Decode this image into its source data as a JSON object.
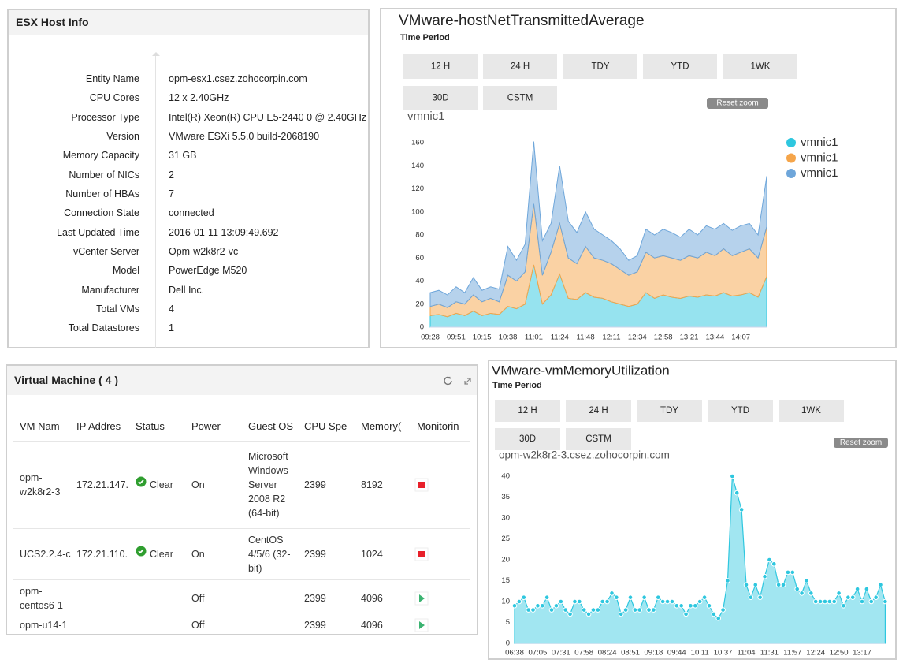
{
  "esx_panel": {
    "title": "ESX Host Info",
    "rows": [
      {
        "label": "Entity Name",
        "value": "opm-esx1.csez.zohocorpin.com"
      },
      {
        "label": "CPU Cores",
        "value": "12 x 2.40GHz"
      },
      {
        "label": "Processor Type",
        "value": "Intel(R) Xeon(R) CPU E5-2440 0 @ 2.40GHz"
      },
      {
        "label": "Version",
        "value": "VMware ESXi 5.5.0 build-2068190"
      },
      {
        "label": "Memory Capacity",
        "value": "31 GB"
      },
      {
        "label": "Number of NICs",
        "value": "2"
      },
      {
        "label": "Number of HBAs",
        "value": "7"
      },
      {
        "label": "Connection State",
        "value": "connected"
      },
      {
        "label": "Last Updated Time",
        "value": "2016-01-11 13:09:49.692"
      },
      {
        "label": "vCenter Server",
        "value": "Opm-w2k8r2-vc"
      },
      {
        "label": "Model",
        "value": "PowerEdge M520"
      },
      {
        "label": "Manufacturer",
        "value": "Dell Inc."
      },
      {
        "label": "Total VMs",
        "value": "4"
      },
      {
        "label": "Total Datastores",
        "value": "1"
      }
    ]
  },
  "vm_panel": {
    "title": "Virtual Machine ( 4 )",
    "columns": [
      "VM Nam",
      "IP Addres",
      "Status",
      "Power",
      "Guest OS",
      "CPU Spe",
      "Memory(",
      "Monitorin"
    ],
    "rows": [
      [
        "opm-w2k8r2-3",
        "172.21.147.",
        "Clear",
        "On",
        "Microsoft Windows Server 2008 R2 (64-bit)",
        "2399",
        "8192"
      ],
      [
        "UCS2.2.4-c",
        "172.21.110.",
        "Clear",
        "On",
        "CentOS 4/5/6 (32-bit)",
        "2399",
        "1024"
      ],
      [
        "opm-centos6-1",
        null,
        null,
        "Off",
        null,
        "2399",
        "4096"
      ],
      [
        "opm-u14-1",
        null,
        null,
        "Off",
        null,
        "2399",
        "4096"
      ]
    ]
  },
  "chart_data": [
    {
      "type": "area",
      "stacked": true,
      "title": "VMware-hostNetTransmittedAverage",
      "time_period_label": "Time Period",
      "buttons": [
        "12 H",
        "24 H",
        "TDY",
        "YTD",
        "1WK",
        "30D",
        "CSTM"
      ],
      "reset_zoom": "Reset zoom",
      "subtitle": "vmnic1",
      "categories": [
        "09:28",
        null,
        null,
        "09:51",
        null,
        null,
        "10:15",
        null,
        null,
        "10:38",
        null,
        null,
        "11:01",
        null,
        null,
        "11:24",
        null,
        null,
        "11:48",
        null,
        null,
        "12:11",
        null,
        null,
        "12:34",
        null,
        null,
        "12:58",
        null,
        null,
        "13:21",
        null,
        null,
        "13:44",
        null,
        null,
        "14:07",
        null,
        null,
        null
      ],
      "series": [
        {
          "name": "vmnic1",
          "color": "#2ec7df",
          "values": [
            10,
            11,
            9,
            12,
            10,
            14,
            10,
            12,
            11,
            18,
            16,
            20,
            54,
            20,
            28,
            46,
            25,
            24,
            30,
            26,
            25,
            22,
            20,
            18,
            20,
            30,
            25,
            28,
            26,
            25,
            27,
            26,
            28,
            27,
            30,
            27,
            28,
            30,
            26,
            44
          ]
        },
        {
          "name": "vmnic1",
          "color": "#f5a54a",
          "values": [
            8,
            9,
            8,
            10,
            10,
            14,
            12,
            13,
            11,
            27,
            24,
            28,
            53,
            25,
            37,
            44,
            35,
            31,
            40,
            34,
            33,
            33,
            30,
            27,
            28,
            35,
            35,
            34,
            34,
            33,
            35,
            34,
            37,
            35,
            38,
            35,
            37,
            38,
            34,
            43
          ]
        },
        {
          "name": "vmnic1",
          "color": "#6ea6da",
          "values": [
            12,
            12,
            11,
            13,
            10,
            15,
            10,
            10,
            11,
            25,
            18,
            24,
            54,
            30,
            25,
            50,
            32,
            27,
            30,
            25,
            22,
            20,
            18,
            13,
            14,
            20,
            20,
            23,
            22,
            20,
            23,
            20,
            23,
            23,
            22,
            22,
            23,
            22,
            20,
            44
          ]
        }
      ],
      "ylim": [
        0,
        170
      ],
      "yticks": [
        0,
        20,
        40,
        60,
        80,
        100,
        120,
        140,
        160
      ],
      "legend": "right"
    },
    {
      "type": "area",
      "markers": true,
      "title": "VMware-vmMemoryUtilization",
      "time_period_label": "Time Period",
      "buttons": [
        "12 H",
        "24 H",
        "TDY",
        "YTD",
        "1WK",
        "30D",
        "CSTM"
      ],
      "reset_zoom": "Reset zoom",
      "subtitle": "opm-w2k8r2-3.csez.zohocorpin.com",
      "categories": [
        "06:38",
        null,
        null,
        null,
        null,
        "07:05",
        null,
        null,
        null,
        null,
        "07:31",
        null,
        null,
        null,
        null,
        "07:58",
        null,
        null,
        null,
        null,
        "08:24",
        null,
        null,
        null,
        null,
        "08:51",
        null,
        null,
        null,
        null,
        "09:18",
        null,
        null,
        null,
        null,
        "09:44",
        null,
        null,
        null,
        null,
        "10:11",
        null,
        null,
        null,
        null,
        "10:37",
        null,
        null,
        null,
        null,
        "11:04",
        null,
        null,
        null,
        null,
        "11:31",
        null,
        null,
        null,
        null,
        "11:57",
        null,
        null,
        null,
        null,
        "12:24",
        null,
        null,
        null,
        null,
        "12:50",
        null,
        null,
        null,
        null,
        "13:17",
        null,
        null,
        null,
        null,
        null
      ],
      "color": "#2ec7df",
      "values": [
        9,
        10,
        11,
        8,
        8,
        9,
        9,
        11,
        8,
        9,
        10,
        8,
        7,
        10,
        10,
        8,
        7,
        8,
        8,
        10,
        10,
        12,
        11,
        7,
        8,
        11,
        8,
        8,
        11,
        8,
        8,
        11,
        10,
        10,
        10,
        9,
        9,
        7,
        9,
        9,
        10,
        11,
        9,
        7,
        6,
        8,
        15,
        40,
        36,
        32,
        14,
        11,
        14,
        11,
        16,
        20,
        19,
        14,
        14,
        17,
        17,
        13,
        12,
        15,
        12,
        10,
        10,
        10,
        10,
        10,
        12,
        9,
        11,
        11,
        13,
        10,
        13,
        10,
        11,
        14,
        10
      ],
      "ylim": [
        0,
        42
      ],
      "yticks": [
        0,
        5,
        10,
        15,
        20,
        25,
        30,
        35,
        40
      ]
    }
  ]
}
